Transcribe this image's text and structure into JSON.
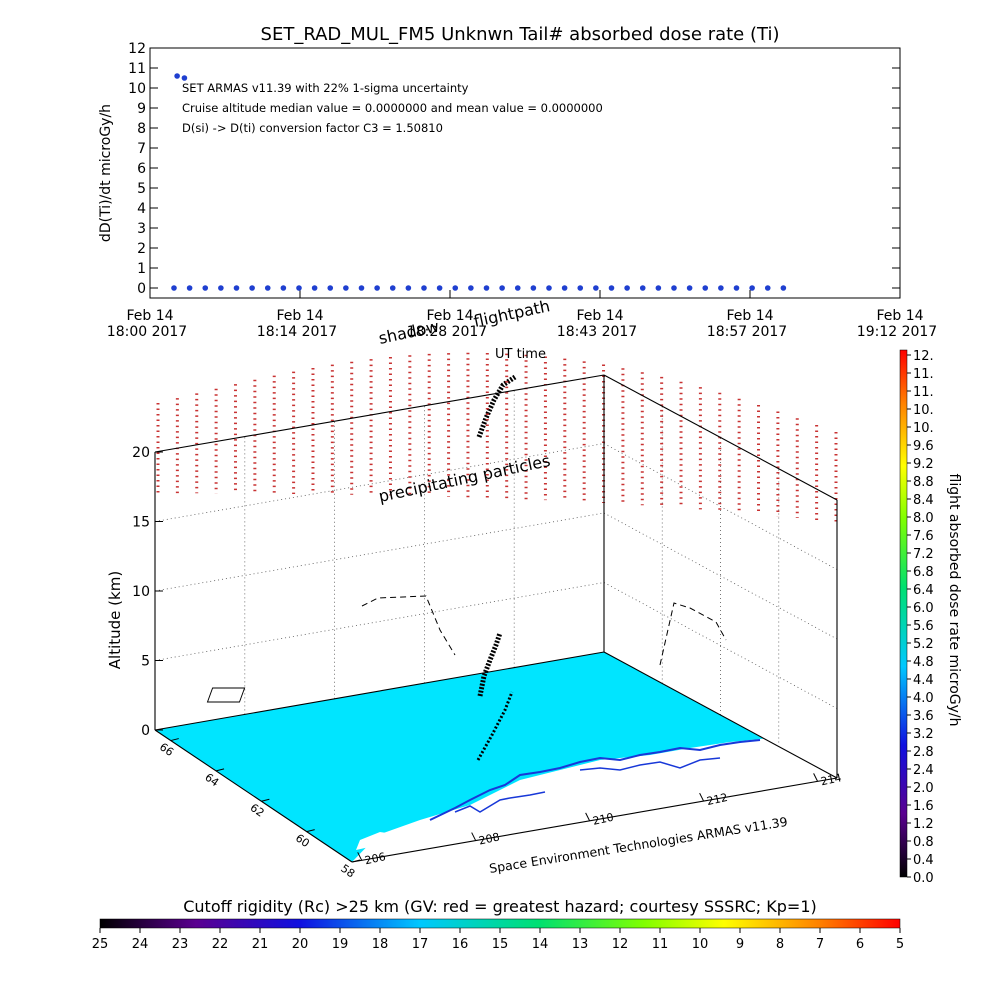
{
  "page": {
    "title": "SET_RAD_MUL_FM5 Unknwn Tail#  absorbed dose rate (Ti)"
  },
  "colors": {
    "series_point": "#1f3fd0",
    "ocean": "#00e5ff",
    "land": "#ffffff",
    "coast": "#1838d8",
    "grid": "#555555",
    "axis": "#000000",
    "precip_marks": "#c83232"
  },
  "chart_data": [
    {
      "type": "scatter",
      "title": "SET_RAD_MUL_FM5 Unknwn Tail#  absorbed dose rate (Ti)",
      "ylabel": "dD(Ti)/dt microGy/h",
      "xlabel": "",
      "x_tick_labels": [
        [
          "Feb 14",
          "18:00 2017"
        ],
        [
          "Feb 14",
          "18:14 2017"
        ],
        [
          "Feb 14",
          "18:28 2017"
        ],
        [
          "Feb 14",
          "18:43 2017"
        ],
        [
          "Feb 14",
          "18:57 2017"
        ],
        [
          "Feb 14",
          "19:12 2017"
        ]
      ],
      "x_range_minutes": [
        0,
        72
      ],
      "ylim": [
        -0.5,
        12
      ],
      "y_ticks": [
        "0",
        "1",
        "2",
        "3",
        "4",
        "5",
        "6",
        "7",
        "8",
        "9",
        "10",
        "11",
        "12"
      ],
      "annotations": [
        "SET ARMAS v11.39 with 22% 1-sigma uncertainty",
        "Cruise altitude median value = 0.0000000 and mean value = 0.0000000",
        "D(si) -> D(ti) conversion factor C3 = 1.50810"
      ],
      "series": [
        {
          "points": [
            [
              0.3,
              10.6
            ],
            [
              1.0,
              10.5
            ],
            [
              0.0,
              0.0
            ],
            [
              1.5,
              0.0
            ],
            [
              3.0,
              0.0
            ],
            [
              4.5,
              0.0
            ],
            [
              6.0,
              0.0
            ],
            [
              7.5,
              0.0
            ],
            [
              9.0,
              0.0
            ],
            [
              10.5,
              0.0
            ],
            [
              12.0,
              0.0
            ],
            [
              13.5,
              0.0
            ],
            [
              15.0,
              0.0
            ],
            [
              16.5,
              0.0
            ],
            [
              18.0,
              0.0
            ],
            [
              19.5,
              0.0
            ],
            [
              21.0,
              0.0
            ],
            [
              22.5,
              0.0
            ],
            [
              24.0,
              0.0
            ],
            [
              25.5,
              0.0
            ],
            [
              27.0,
              0.0
            ],
            [
              28.5,
              0.0
            ],
            [
              30.0,
              0.0
            ],
            [
              31.5,
              0.0
            ],
            [
              33.0,
              0.0
            ],
            [
              34.5,
              0.0
            ],
            [
              36.0,
              0.0
            ],
            [
              37.5,
              0.0
            ],
            [
              39.0,
              0.0
            ],
            [
              40.5,
              0.0
            ],
            [
              42.0,
              0.0
            ],
            [
              43.5,
              0.0
            ],
            [
              45.0,
              0.0
            ],
            [
              46.5,
              0.0
            ],
            [
              48.0,
              0.0
            ],
            [
              49.5,
              0.0
            ],
            [
              51.0,
              0.0
            ],
            [
              52.5,
              0.0
            ],
            [
              54.0,
              0.0
            ],
            [
              55.5,
              0.0
            ],
            [
              57.0,
              0.0
            ],
            [
              58.5,
              0.0
            ]
          ]
        }
      ]
    },
    {
      "type": "scatter",
      "subtype": "3d-surface",
      "labels": {
        "shadow": "shadow",
        "flightpath": "flightpath",
        "ut_time": "UT time",
        "precip": "precipitating particles",
        "credit": "Space Environment Technologies ARMAS v11.39"
      },
      "zlabel": "Altitude (km)",
      "z_ticks": [
        "0",
        "5",
        "10",
        "15",
        "20"
      ],
      "zlim": [
        0,
        20
      ],
      "lat_ticks": [
        "58",
        "60",
        "62",
        "64",
        "66"
      ],
      "lon_ticks": [
        "206",
        "208",
        "210",
        "212",
        "214"
      ],
      "flight_altitude_km": [
        [
          0,
          7.0
        ],
        [
          1,
          6.5
        ],
        [
          2,
          5.8
        ],
        [
          3,
          5.0
        ],
        [
          4,
          4.0
        ],
        [
          5,
          2.5
        ],
        [
          6,
          0.5
        ]
      ],
      "precip_altitude_range_km": [
        14,
        22
      ]
    },
    {
      "type": "heatmap",
      "subtype": "colorbar",
      "label": "flight absorbed dose rate microGy/h",
      "ticks": [
        "12.",
        "11.",
        "11.",
        "10.",
        "10.",
        "9.6",
        "9.2",
        "8.8",
        "8.4",
        "8.0",
        "7.6",
        "7.2",
        "6.8",
        "6.4",
        "6.0",
        "5.6",
        "5.2",
        "4.8",
        "4.4",
        "4.0",
        "3.6",
        "3.2",
        "2.8",
        "2.4",
        "2.0",
        "1.6",
        "1.2",
        "0.8",
        "0.4",
        "0.0"
      ],
      "range": [
        0,
        12
      ]
    },
    {
      "type": "heatmap",
      "subtype": "colorbar",
      "label": "Cutoff rigidity (Rc) >25 km (GV: red = greatest hazard; courtesy SSSRC; Kp=1)",
      "ticks": [
        "25",
        "24",
        "23",
        "22",
        "21",
        "20",
        "19",
        "18",
        "17",
        "16",
        "15",
        "14",
        "13",
        "12",
        "11",
        "10",
        "9",
        "8",
        "7",
        "6",
        "5"
      ],
      "range": [
        25,
        5
      ]
    }
  ]
}
